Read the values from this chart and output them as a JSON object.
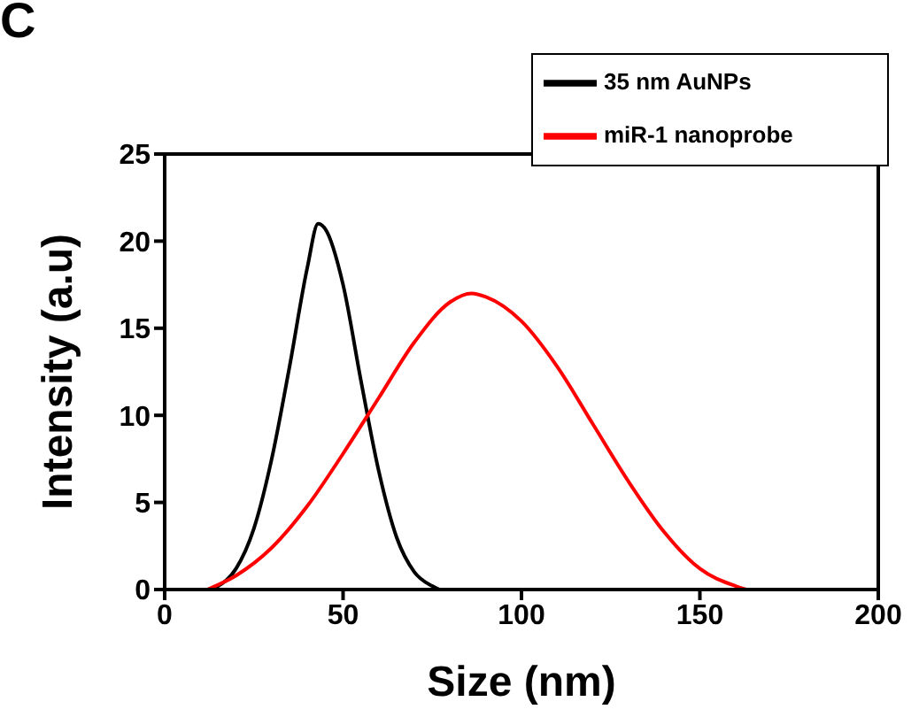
{
  "chart_data": {
    "type": "line",
    "xlabel": "Size (nm)",
    "ylabel": "Intensity (a.u)",
    "annotations": [
      "C"
    ],
    "xlim": [
      0,
      200
    ],
    "xticks": [
      0,
      50,
      100,
      150,
      200
    ],
    "ylim": [
      0,
      25
    ],
    "yticks": [
      0,
      5,
      10,
      15,
      20,
      25
    ],
    "grid": false,
    "legend": "top right",
    "marker": "none",
    "line_style": "solid",
    "series": [
      {
        "name": "35 nm AuNPs",
        "color": "#000000",
        "x": [
          12,
          15,
          20,
          25,
          30,
          35,
          40,
          43,
          45,
          50,
          55,
          60,
          65,
          70,
          75,
          77
        ],
        "values": [
          0,
          0.2,
          1.2,
          3.5,
          7.5,
          12.8,
          18.5,
          21,
          20.7,
          17.5,
          12,
          6.8,
          3,
          1,
          0.2,
          0
        ]
      },
      {
        "name": "miR-1 nanoprobe",
        "color": "#ff0000",
        "x": [
          12,
          20,
          30,
          40,
          50,
          60,
          70,
          80,
          86,
          90,
          100,
          110,
          120,
          130,
          140,
          150,
          160,
          163
        ],
        "values": [
          0,
          0.8,
          2.4,
          4.8,
          7.8,
          11,
          14.2,
          16.5,
          17,
          16.8,
          15.4,
          12.8,
          9.5,
          6.2,
          3.3,
          1.2,
          0.2,
          0
        ]
      }
    ]
  }
}
